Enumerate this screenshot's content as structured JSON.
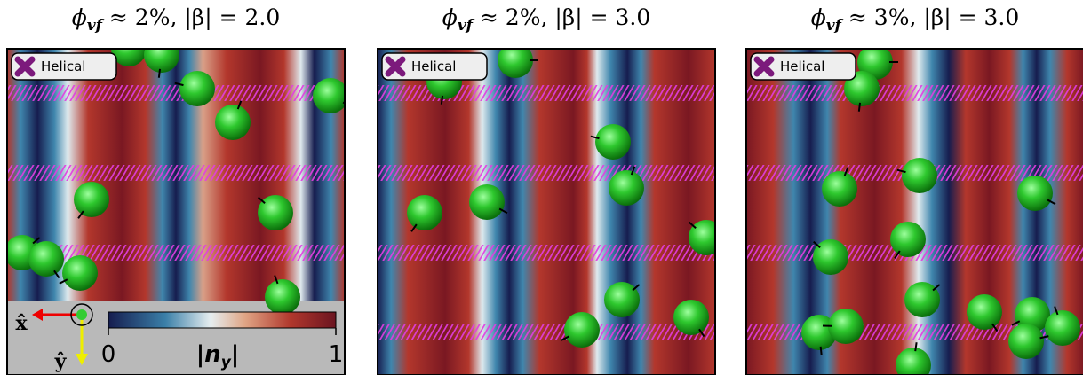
{
  "panels": [
    {
      "title": {
        "symbol": "ϕ",
        "subscript": "vf",
        "relation": " ≈ 2%, |β| = 2.0"
      },
      "legend": "Helical"
    },
    {
      "title": {
        "symbol": "ϕ",
        "subscript": "vf",
        "relation": " ≈ 2%, |β| = 3.0"
      },
      "legend": "Helical"
    },
    {
      "title": {
        "symbol": "ϕ",
        "subscript": "vf",
        "relation": " ≈ 3%, |β| = 3.0"
      },
      "legend": "Helical"
    }
  ],
  "colorbar": {
    "label": {
      "symbol": "|n",
      "subscript": "y",
      "close": "|"
    },
    "range": [
      0,
      1
    ],
    "ticks": [
      0,
      1
    ]
  },
  "axes": {
    "x": "x̂",
    "y": "ŷ"
  }
}
